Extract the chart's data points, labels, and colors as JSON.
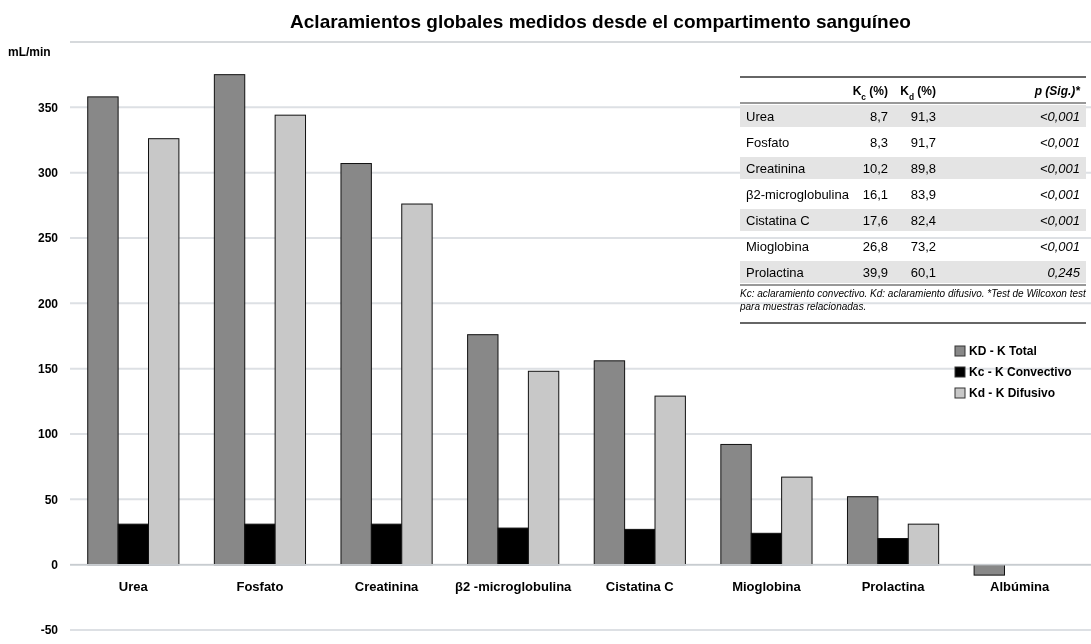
{
  "chart_data": [
    {
      "type": "bar",
      "title": "Aclaramientos globales medidos desde el compartimento sanguíneo",
      "ylabel": "mL/min",
      "categories": [
        "Urea",
        "Fosfato",
        "Creatinina",
        "β2 -microglobulina",
        "Cistatina C",
        "Mioglobina",
        "Prolactina",
        "Albúmina"
      ],
      "series": [
        {
          "name": "KD - K Total",
          "color": "#888888",
          "values": [
            358,
            375,
            307,
            176,
            156,
            92,
            52,
            -8
          ]
        },
        {
          "name": "Kc - K Convectivo",
          "color": "#000000",
          "values": [
            31,
            31,
            31,
            28,
            27,
            24,
            20,
            null
          ]
        },
        {
          "name": "Kd - K Difusivo",
          "color": "#c8c8c8",
          "values": [
            326,
            344,
            276,
            148,
            129,
            67,
            31,
            null
          ]
        }
      ],
      "ylim": [
        -50,
        400
      ],
      "yticks": [
        -50,
        0,
        50,
        100,
        150,
        200,
        250,
        300,
        350
      ],
      "grid": "y",
      "legend": "right"
    },
    {
      "type": "other",
      "annotations": [
        "K$_{c}$ (%)",
        "K$_{d}$ (%)",
        "p (Sig.)*",
        "Urea",
        "8,7",
        "91,3",
        "<0,001",
        "Fosfato",
        "8,3",
        "91,7",
        "<0,001",
        "Creatinina",
        "10,2",
        "89,8",
        "<0,001",
        "β2-microglobulina",
        "16,1",
        "83,9",
        "<0,001",
        "Cistatina C",
        "17,6",
        "82,4",
        "<0,001",
        "Mioglobina",
        "26,8",
        "73,2",
        "<0,001",
        "Prolactina",
        "39,9",
        "60,1",
        "0,245",
        "Kc: aclaramiento convectivo. Kd: aclaramiento difusivo. *Test de Wilcoxon test para muestras relacionadas."
      ]
    }
  ]
}
